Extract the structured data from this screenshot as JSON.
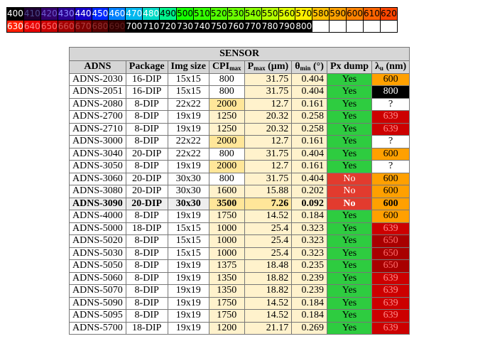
{
  "wavelength_scale": {
    "row1": [
      {
        "label": "400",
        "bg": "#000000",
        "fg": "#ffffff"
      },
      {
        "label": "410",
        "bg": "#1e0032",
        "fg": "#4a4a8a"
      },
      {
        "label": "420",
        "bg": "#33006b",
        "fg": "#6a5acd"
      },
      {
        "label": "430",
        "bg": "#2a0090",
        "fg": "#8a8aff"
      },
      {
        "label": "440",
        "bg": "#1600c8",
        "fg": "#ffffff"
      },
      {
        "label": "450",
        "bg": "#0028ff",
        "fg": "#ffffff"
      },
      {
        "label": "460",
        "bg": "#007ffd",
        "fg": "#ffffff"
      },
      {
        "label": "470",
        "bg": "#00b7ee",
        "fg": "#ffffff"
      },
      {
        "label": "480",
        "bg": "#00dac6",
        "fg": "#ffffff"
      },
      {
        "label": "490",
        "bg": "#00f28c",
        "fg": "#000000"
      },
      {
        "label": "500",
        "bg": "#15ff00",
        "fg": "#000000"
      },
      {
        "label": "510",
        "bg": "#33ff00",
        "fg": "#000000"
      },
      {
        "label": "520",
        "bg": "#52ff00",
        "fg": "#000000"
      },
      {
        "label": "530",
        "bg": "#6aff00",
        "fg": "#000000"
      },
      {
        "label": "540",
        "bg": "#8aff00",
        "fg": "#000000"
      },
      {
        "label": "550",
        "bg": "#b4ff00",
        "fg": "#000000"
      },
      {
        "label": "560",
        "bg": "#e0ff00",
        "fg": "#000000"
      },
      {
        "label": "570",
        "bg": "#ffee00",
        "fg": "#000000"
      },
      {
        "label": "580",
        "bg": "#ffbf00",
        "fg": "#000000"
      },
      {
        "label": "590",
        "bg": "#ffa000",
        "fg": "#000000"
      },
      {
        "label": "600",
        "bg": "#ff8200",
        "fg": "#000000"
      },
      {
        "label": "610",
        "bg": "#ff6400",
        "fg": "#000000"
      },
      {
        "label": "620",
        "bg": "#ff4600",
        "fg": "#000000"
      }
    ],
    "row2": [
      {
        "label": "630",
        "bg": "#ff1e00",
        "fg": "#ffffff"
      },
      {
        "label": "640",
        "bg": "#e80000",
        "fg": "#ff9090"
      },
      {
        "label": "650",
        "bg": "#c80000",
        "fg": "#ff7070"
      },
      {
        "label": "660",
        "bg": "#a30000",
        "fg": "#d05050"
      },
      {
        "label": "670",
        "bg": "#7f0000",
        "fg": "#b04040"
      },
      {
        "label": "680",
        "bg": "#5a0000",
        "fg": "#903030"
      },
      {
        "label": "690",
        "bg": "#330000",
        "fg": "#602020"
      },
      {
        "label": "700",
        "bg": "#000000",
        "fg": "#ffffff"
      },
      {
        "label": "710",
        "bg": "#000000",
        "fg": "#ffffff"
      },
      {
        "label": "720",
        "bg": "#000000",
        "fg": "#ffffff"
      },
      {
        "label": "730",
        "bg": "#000000",
        "fg": "#ffffff"
      },
      {
        "label": "740",
        "bg": "#000000",
        "fg": "#ffffff"
      },
      {
        "label": "750",
        "bg": "#000000",
        "fg": "#ffffff"
      },
      {
        "label": "760",
        "bg": "#000000",
        "fg": "#ffffff"
      },
      {
        "label": "770",
        "bg": "#000000",
        "fg": "#ffffff"
      },
      {
        "label": "780",
        "bg": "#000000",
        "fg": "#ffffff"
      },
      {
        "label": "790",
        "bg": "#000000",
        "fg": "#ffffff"
      },
      {
        "label": "800",
        "bg": "#000000",
        "fg": "#ffffff"
      },
      {
        "label": "",
        "bg": "#ffffff",
        "fg": "#000000"
      },
      {
        "label": "",
        "bg": "#ffffff",
        "fg": "#000000"
      },
      {
        "label": "",
        "bg": "#ffffff",
        "fg": "#000000"
      },
      {
        "label": "",
        "bg": "#ffffff",
        "fg": "#000000"
      },
      {
        "label": "",
        "bg": "#ffffff",
        "fg": "#000000"
      }
    ]
  },
  "table": {
    "title": "SENSOR",
    "headers": {
      "adns": "ADNS",
      "package": "Package",
      "img_size": "Img size",
      "cpi": "CPI",
      "cpi_sub": "max",
      "pmax": "P",
      "pmax_sub": "max",
      "pmax_unit": " (µm)",
      "theta": "θ",
      "theta_sub": "min",
      "theta_unit": " (°)",
      "px_dump": "Px dump",
      "lambda": "λ",
      "lambda_sub": "u",
      "lambda_unit": " (nm)"
    },
    "colors": {
      "cpi_800": "#ffffff",
      "cpi_mid": "#fff2cc",
      "cpi_hi": "#ffe699",
      "pmax_bg": "#fff2cc",
      "pmax_hl": "#ffe699",
      "theta_bg": "#fff2cc",
      "yes_bg": "#2ecc40",
      "no_bg": "#e23b2e",
      "lambda_600": "#ffa000",
      "lambda_800": "#000000",
      "lambda_639": "#cc0000",
      "lambda_650": "#a80000",
      "lambda_unknown": "#ffffff"
    },
    "rows": [
      {
        "adns": "ADNS-2030",
        "package": "16-DIP",
        "img": "15x15",
        "cpi": "800",
        "pmax": "31.75",
        "theta": "0.404",
        "px": "Yes",
        "lambda": "600"
      },
      {
        "adns": "ADNS-2051",
        "package": "16-DIP",
        "img": "15x15",
        "cpi": "800",
        "pmax": "31.75",
        "theta": "0.404",
        "px": "Yes",
        "lambda": "800"
      },
      {
        "adns": "ADNS-2080",
        "package": "8-DIP",
        "img": "22x22",
        "cpi": "2000",
        "pmax": "12.7",
        "theta": "0.161",
        "px": "Yes",
        "lambda": "?"
      },
      {
        "adns": "ADNS-2700",
        "package": "8-DIP",
        "img": "19x19",
        "cpi": "1250",
        "pmax": "20.32",
        "theta": "0.258",
        "px": "Yes",
        "lambda": "639"
      },
      {
        "adns": "ADNS-2710",
        "package": "8-DIP",
        "img": "19x19",
        "cpi": "1250",
        "pmax": "20.32",
        "theta": "0.258",
        "px": "Yes",
        "lambda": "639"
      },
      {
        "adns": "ADNS-3000",
        "package": "8-DIP",
        "img": "22x22",
        "cpi": "2000",
        "pmax": "12.7",
        "theta": "0.161",
        "px": "Yes",
        "lambda": "?"
      },
      {
        "adns": "ADNS-3040",
        "package": "20-DIP",
        "img": "22x22",
        "cpi": "800",
        "pmax": "31.75",
        "theta": "0.404",
        "px": "Yes",
        "lambda": "600"
      },
      {
        "adns": "ADNS-3050",
        "package": "8-DIP",
        "img": "19x19",
        "cpi": "2000",
        "pmax": "12.7",
        "theta": "0.161",
        "px": "Yes",
        "lambda": "?"
      },
      {
        "adns": "ADNS-3060",
        "package": "20-DIP",
        "img": "30x30",
        "cpi": "800",
        "pmax": "31.75",
        "theta": "0.404",
        "px": "No",
        "lambda": "600"
      },
      {
        "adns": "ADNS-3080",
        "package": "20-DIP",
        "img": "30x30",
        "cpi": "1600",
        "pmax": "15.88",
        "theta": "0.202",
        "px": "No",
        "lambda": "600"
      },
      {
        "adns": "ADNS-3090",
        "package": "20-DIP",
        "img": "30x30",
        "cpi": "3500",
        "pmax": "7.26",
        "theta": "0.092",
        "px": "No",
        "lambda": "600",
        "highlight": true
      },
      {
        "adns": "ADNS-4000",
        "package": "8-DIP",
        "img": "19x19",
        "cpi": "1750",
        "pmax": "14.52",
        "theta": "0.184",
        "px": "Yes",
        "lambda": "600"
      },
      {
        "adns": "ADNS-5000",
        "package": "18-DIP",
        "img": "15x15",
        "cpi": "1000",
        "pmax": "25.4",
        "theta": "0.323",
        "px": "Yes",
        "lambda": "639"
      },
      {
        "adns": "ADNS-5020",
        "package": "8-DIP",
        "img": "15x15",
        "cpi": "1000",
        "pmax": "25.4",
        "theta": "0.323",
        "px": "Yes",
        "lambda": "650"
      },
      {
        "adns": "ADNS-5030",
        "package": "8-DIP",
        "img": "15x15",
        "cpi": "1000",
        "pmax": "25.4",
        "theta": "0.323",
        "px": "Yes",
        "lambda": "650"
      },
      {
        "adns": "ADNS-5050",
        "package": "8-DIP",
        "img": "19x19",
        "cpi": "1375",
        "pmax": "18.48",
        "theta": "0.235",
        "px": "Yes",
        "lambda": "650"
      },
      {
        "adns": "ADNS-5060",
        "package": "8-DIP",
        "img": "19x19",
        "cpi": "1350",
        "pmax": "18.82",
        "theta": "0.239",
        "px": "Yes",
        "lambda": "639"
      },
      {
        "adns": "ADNS-5070",
        "package": "8-DIP",
        "img": "19x19",
        "cpi": "1350",
        "pmax": "18.82",
        "theta": "0.239",
        "px": "Yes",
        "lambda": "639"
      },
      {
        "adns": "ADNS-5090",
        "package": "8-DIP",
        "img": "19x19",
        "cpi": "1750",
        "pmax": "14.52",
        "theta": "0.184",
        "px": "Yes",
        "lambda": "639"
      },
      {
        "adns": "ADNS-5095",
        "package": "8-DIP",
        "img": "19x19",
        "cpi": "1750",
        "pmax": "14.52",
        "theta": "0.184",
        "px": "Yes",
        "lambda": "639"
      },
      {
        "adns": "ADNS-5700",
        "package": "18-DIP",
        "img": "19x19",
        "cpi": "1200",
        "pmax": "21.17",
        "theta": "0.269",
        "px": "Yes",
        "lambda": "639"
      }
    ]
  }
}
